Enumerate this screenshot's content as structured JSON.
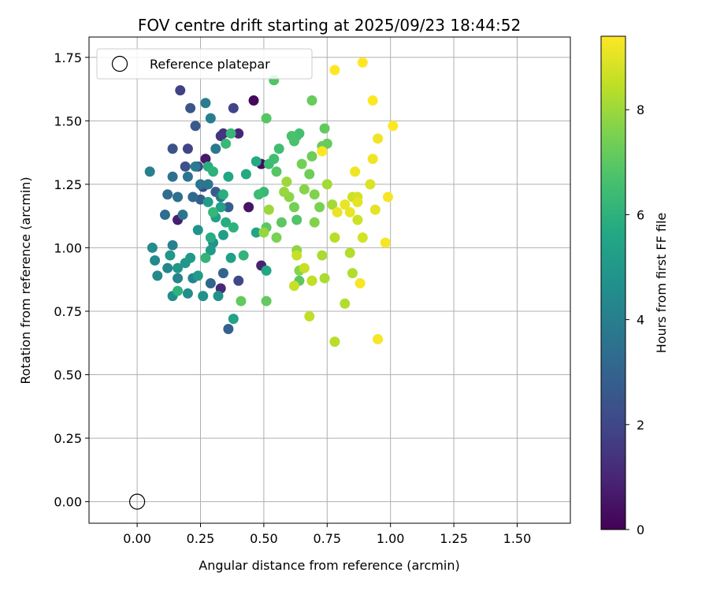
{
  "chart_data": {
    "type": "scatter",
    "title": "FOV centre drift starting at 2025/09/23 18:44:52",
    "xlabel": "Angular distance from reference (arcmin)",
    "ylabel": "Rotation from reference (arcmin)",
    "xlim": [
      -0.19,
      1.71
    ],
    "ylim": [
      -0.085,
      1.83
    ],
    "xticks": [
      0.0,
      0.25,
      0.5,
      0.75,
      1.0,
      1.25,
      1.5
    ],
    "xtick_labels": [
      "0.00",
      "0.25",
      "0.50",
      "0.75",
      "1.00",
      "1.25",
      "1.50"
    ],
    "yticks": [
      0.0,
      0.25,
      0.5,
      0.75,
      1.0,
      1.25,
      1.5,
      1.75
    ],
    "ytick_labels": [
      "0.00",
      "0.25",
      "0.50",
      "0.75",
      "1.00",
      "1.25",
      "1.50",
      "1.75"
    ],
    "grid": true,
    "legend": {
      "position": "top-left",
      "entries": [
        "Reference platepar"
      ]
    },
    "reference_point": {
      "x": 0.0,
      "y": 0.0,
      "label": "Reference platepar"
    },
    "colorbar": {
      "label": "Hours from first FF file",
      "range": [
        0,
        9.4
      ],
      "ticks": [
        0,
        2,
        4,
        6,
        8
      ],
      "tick_labels": [
        "0",
        "2",
        "4",
        "6",
        "8"
      ],
      "colormap": "viridis"
    },
    "series": [
      {
        "name": "FOV centre drift",
        "points": [
          [
            0.46,
            1.58,
            0.2
          ],
          [
            0.49,
            1.33,
            0.3
          ],
          [
            0.44,
            1.16,
            0.5
          ],
          [
            0.27,
            1.35,
            0.6
          ],
          [
            0.16,
            1.11,
            0.8
          ],
          [
            0.49,
            0.93,
            0.9
          ],
          [
            0.33,
            0.84,
            1.1
          ],
          [
            0.34,
            1.45,
            1.3
          ],
          [
            0.4,
            1.45,
            1.0
          ],
          [
            0.33,
            1.44,
            1.4
          ],
          [
            0.17,
            1.62,
            1.8
          ],
          [
            0.38,
            1.55,
            1.9
          ],
          [
            0.2,
            1.39,
            1.9
          ],
          [
            0.24,
            1.32,
            2.0
          ],
          [
            0.4,
            0.87,
            2.1
          ],
          [
            0.26,
            1.24,
            2.2
          ],
          [
            0.19,
            1.32,
            2.3
          ],
          [
            0.14,
            1.39,
            2.4
          ],
          [
            0.21,
            1.55,
            2.5
          ],
          [
            0.23,
            1.48,
            2.6
          ],
          [
            0.31,
            1.22,
            2.7
          ],
          [
            0.25,
            1.19,
            2.8
          ],
          [
            0.36,
            1.16,
            2.8
          ],
          [
            0.36,
            0.68,
            2.9
          ],
          [
            0.34,
            0.9,
            3.0
          ],
          [
            0.29,
            0.86,
            3.1
          ],
          [
            0.22,
            1.2,
            3.2
          ],
          [
            0.12,
            1.21,
            3.3
          ],
          [
            0.11,
            1.13,
            3.4
          ],
          [
            0.16,
            1.2,
            3.4
          ],
          [
            0.14,
            1.28,
            3.5
          ],
          [
            0.18,
            1.13,
            3.6
          ],
          [
            0.2,
            1.28,
            3.6
          ],
          [
            0.25,
            1.25,
            3.7
          ],
          [
            0.28,
            1.25,
            3.7
          ],
          [
            0.33,
            1.2,
            3.8
          ],
          [
            0.31,
            1.39,
            3.8
          ],
          [
            0.23,
            1.32,
            3.9
          ],
          [
            0.27,
            1.57,
            4.0
          ],
          [
            0.29,
            1.51,
            4.0
          ],
          [
            0.05,
            1.3,
            4.1
          ],
          [
            0.14,
            1.01,
            4.1
          ],
          [
            0.22,
            0.88,
            4.2
          ],
          [
            0.16,
            0.88,
            4.2
          ],
          [
            0.12,
            0.92,
            4.3
          ],
          [
            0.08,
            0.89,
            4.4
          ],
          [
            0.07,
            0.95,
            4.4
          ],
          [
            0.06,
            1.0,
            4.5
          ],
          [
            0.14,
            0.81,
            4.5
          ],
          [
            0.2,
            0.82,
            4.6
          ],
          [
            0.26,
            0.81,
            4.7
          ],
          [
            0.32,
            0.81,
            4.8
          ],
          [
            0.3,
            1.02,
            4.8
          ],
          [
            0.24,
            1.07,
            4.8
          ],
          [
            0.13,
            0.97,
            4.9
          ],
          [
            0.16,
            0.92,
            4.9
          ],
          [
            0.19,
            0.94,
            5.0
          ],
          [
            0.21,
            0.96,
            5.0
          ],
          [
            0.24,
            0.89,
            5.1
          ],
          [
            0.29,
            0.99,
            5.1
          ],
          [
            0.34,
            1.05,
            5.2
          ],
          [
            0.28,
            1.18,
            5.2
          ],
          [
            0.31,
            1.12,
            5.3
          ],
          [
            0.37,
            0.96,
            5.3
          ],
          [
            0.38,
            0.72,
            5.4
          ],
          [
            0.33,
            1.16,
            5.4
          ],
          [
            0.47,
            1.06,
            5.5
          ],
          [
            0.51,
            0.91,
            5.6
          ],
          [
            0.36,
            1.28,
            5.6
          ],
          [
            0.47,
            1.34,
            5.7
          ],
          [
            0.43,
            1.29,
            5.7
          ],
          [
            0.29,
            1.04,
            5.8
          ],
          [
            0.35,
            1.1,
            5.8
          ],
          [
            0.28,
            1.32,
            5.9
          ],
          [
            0.34,
            1.21,
            5.9
          ],
          [
            0.3,
            1.3,
            6.0
          ],
          [
            0.38,
            1.08,
            6.0
          ],
          [
            0.16,
            0.83,
            6.0
          ],
          [
            0.42,
            0.97,
            6.1
          ],
          [
            0.27,
            0.96,
            6.1
          ],
          [
            0.3,
            1.14,
            6.2
          ],
          [
            0.37,
            1.45,
            6.2
          ],
          [
            0.35,
            1.41,
            6.3
          ],
          [
            0.5,
            1.22,
            6.3
          ],
          [
            0.48,
            1.21,
            6.4
          ],
          [
            0.52,
            1.33,
            6.4
          ],
          [
            0.54,
            1.35,
            6.5
          ],
          [
            0.56,
            1.39,
            6.5
          ],
          [
            0.63,
            1.44,
            6.6
          ],
          [
            0.64,
            1.45,
            6.6
          ],
          [
            0.61,
            1.44,
            6.7
          ],
          [
            0.62,
            1.42,
            6.7
          ],
          [
            0.63,
            1.11,
            6.8
          ],
          [
            0.54,
            1.66,
            6.8
          ],
          [
            0.51,
            1.51,
            6.9
          ],
          [
            0.55,
            1.3,
            6.9
          ],
          [
            0.51,
            1.08,
            7.0
          ],
          [
            0.57,
            1.1,
            7.0
          ],
          [
            0.64,
            0.87,
            7.0
          ],
          [
            0.51,
            0.79,
            7.1
          ],
          [
            0.41,
            0.79,
            7.1
          ],
          [
            0.74,
            1.47,
            7.1
          ],
          [
            0.75,
            1.41,
            7.2
          ],
          [
            0.73,
            1.4,
            7.2
          ],
          [
            0.69,
            1.58,
            7.2
          ],
          [
            0.69,
            1.36,
            7.3
          ],
          [
            0.68,
            1.29,
            7.3
          ],
          [
            0.65,
            1.33,
            7.4
          ],
          [
            0.62,
            1.16,
            7.4
          ],
          [
            0.55,
            1.04,
            7.5
          ],
          [
            0.72,
            1.16,
            7.5
          ],
          [
            0.7,
            1.21,
            7.6
          ],
          [
            0.7,
            1.1,
            7.6
          ],
          [
            0.66,
            1.23,
            7.7
          ],
          [
            0.64,
            0.91,
            7.7
          ],
          [
            0.63,
            0.99,
            7.8
          ],
          [
            0.6,
            1.2,
            7.8
          ],
          [
            0.58,
            1.22,
            7.9
          ],
          [
            0.5,
            1.06,
            7.9
          ],
          [
            0.52,
            1.15,
            8.0
          ],
          [
            0.59,
            1.26,
            8.0
          ],
          [
            0.75,
            1.25,
            8.1
          ],
          [
            0.77,
            1.17,
            8.1
          ],
          [
            0.73,
            0.97,
            8.2
          ],
          [
            0.74,
            0.88,
            8.2
          ],
          [
            0.69,
            0.87,
            8.2
          ],
          [
            0.82,
            0.78,
            8.3
          ],
          [
            0.84,
            0.98,
            8.3
          ],
          [
            0.85,
            0.9,
            8.3
          ],
          [
            0.78,
            1.04,
            8.4
          ],
          [
            0.78,
            0.63,
            8.4
          ],
          [
            0.68,
            0.73,
            8.5
          ],
          [
            0.69,
            0.87,
            8.5
          ],
          [
            0.62,
            0.85,
            8.6
          ],
          [
            0.66,
            0.92,
            8.6
          ],
          [
            0.63,
            0.97,
            8.6
          ],
          [
            0.85,
            1.2,
            8.7
          ],
          [
            0.87,
            1.11,
            8.7
          ],
          [
            0.89,
            1.04,
            8.8
          ],
          [
            0.87,
            1.2,
            8.8
          ],
          [
            0.92,
            1.25,
            8.9
          ],
          [
            0.87,
            1.18,
            9.0
          ],
          [
            0.94,
            1.15,
            9.0
          ],
          [
            0.84,
            1.14,
            9.1
          ],
          [
            0.79,
            1.14,
            9.1
          ],
          [
            0.82,
            1.17,
            9.1
          ],
          [
            0.86,
            1.3,
            9.2
          ],
          [
            0.93,
            1.35,
            9.2
          ],
          [
            0.95,
            1.43,
            9.2
          ],
          [
            0.88,
            0.86,
            9.3
          ],
          [
            0.95,
            0.64,
            9.3
          ],
          [
            0.98,
            1.02,
            9.3
          ],
          [
            0.99,
            1.2,
            9.3
          ],
          [
            1.01,
            1.48,
            9.4
          ],
          [
            0.93,
            1.58,
            9.4
          ],
          [
            0.89,
            1.73,
            9.4
          ],
          [
            0.78,
            1.7,
            9.4
          ],
          [
            0.73,
            1.38,
            9.4
          ]
        ]
      }
    ]
  }
}
